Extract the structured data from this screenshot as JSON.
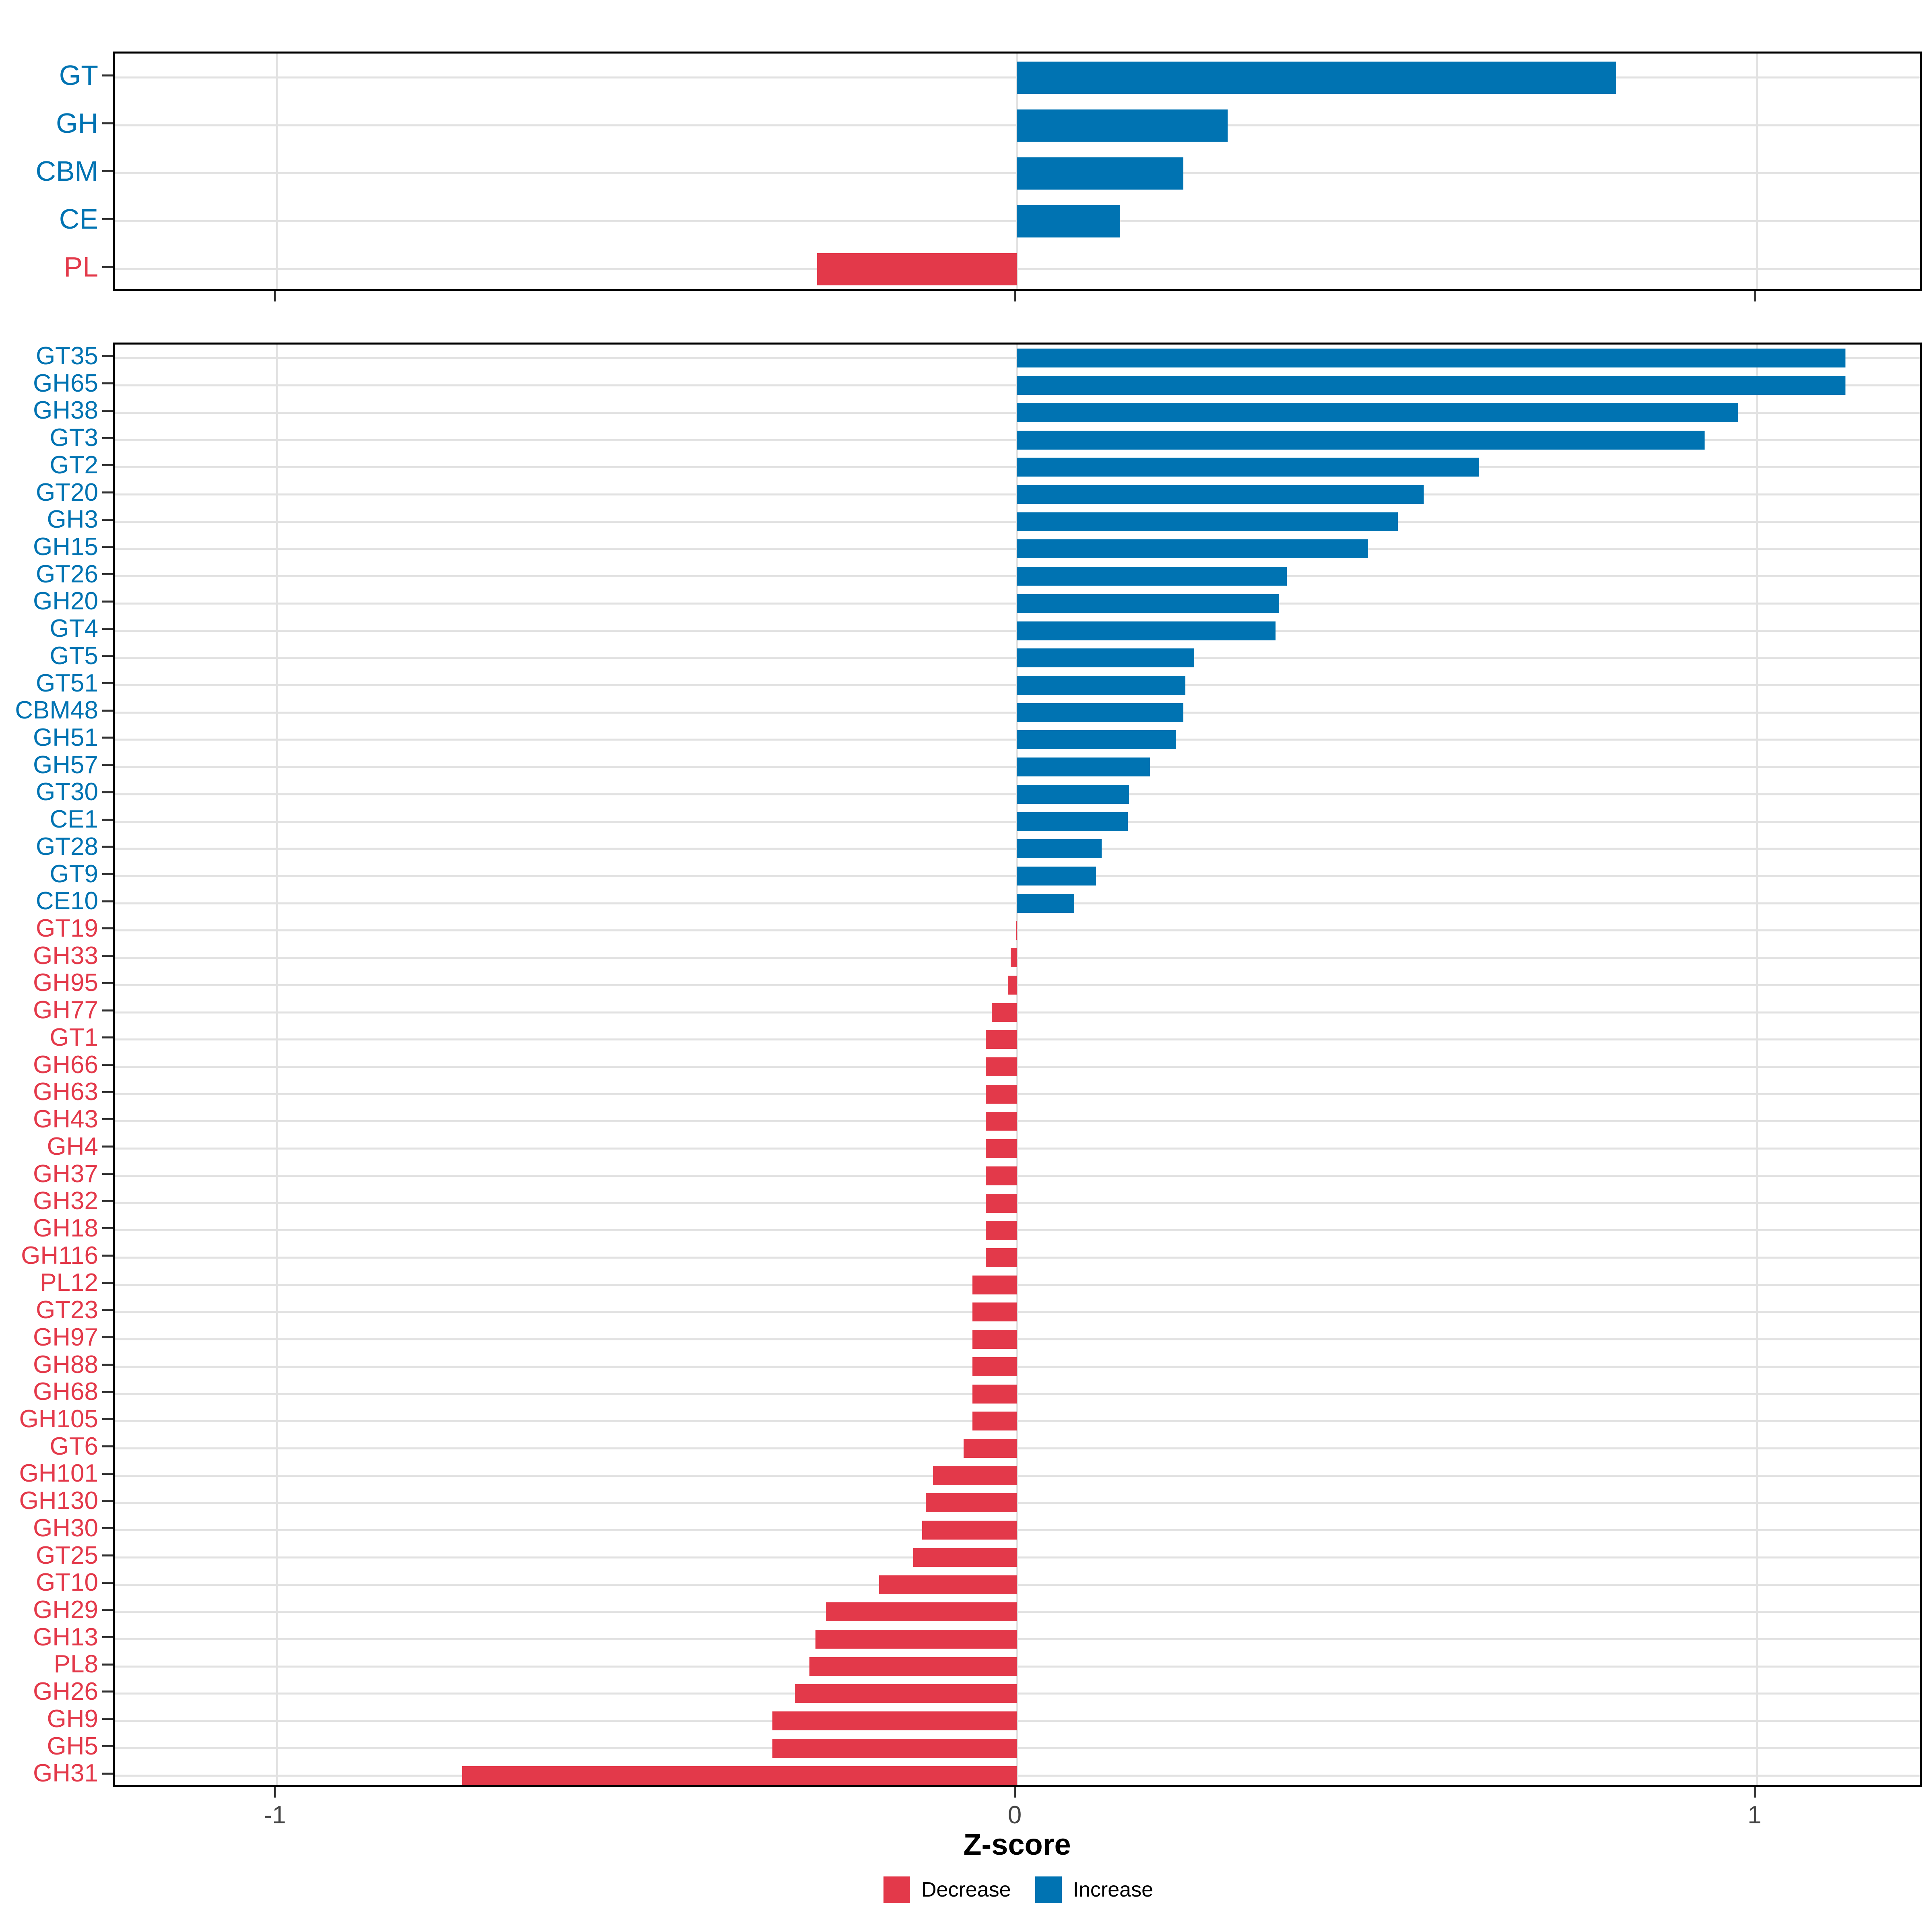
{
  "chart_data": [
    {
      "type": "bar",
      "orientation": "horizontal",
      "panel": "cazyme-class-summary",
      "categories": [
        "GT",
        "GH",
        "CBM",
        "CE",
        "PL"
      ],
      "values": [
        0.81,
        0.285,
        0.225,
        0.14,
        -0.27
      ],
      "directions": [
        "Increase",
        "Increase",
        "Increase",
        "Increase",
        "Decrease"
      ],
      "xlim": [
        -1.22,
        1.23
      ],
      "grid": "on",
      "gridlines_x": [
        -1,
        0,
        1
      ],
      "xticks": [
        -1,
        0,
        1
      ],
      "xticklabels": [
        "",
        "",
        ""
      ]
    },
    {
      "type": "bar",
      "orientation": "horizontal",
      "panel": "cazyme-family-detail",
      "categories": [
        "GT35",
        "GH65",
        "GH38",
        "GT3",
        "GT2",
        "GT20",
        "GH3",
        "GH15",
        "GT26",
        "GH20",
        "GT4",
        "GT5",
        "GT51",
        "CBM48",
        "GH51",
        "GH57",
        "GT30",
        "CE1",
        "GT28",
        "GT9",
        "CE10",
        "GT19",
        "GH33",
        "GH95",
        "GH77",
        "GT1",
        "GH66",
        "GH63",
        "GH43",
        "GH4",
        "GH37",
        "GH32",
        "GH18",
        "GH116",
        "PL12",
        "GT23",
        "GH97",
        "GH88",
        "GH68",
        "GH105",
        "GT6",
        "GH101",
        "GH130",
        "GH30",
        "GT25",
        "GT10",
        "GH29",
        "GH13",
        "PL8",
        "GH26",
        "GH9",
        "GH5",
        "GH31"
      ],
      "values": [
        1.12,
        1.12,
        0.975,
        0.93,
        0.625,
        0.55,
        0.515,
        0.475,
        0.365,
        0.355,
        0.35,
        0.24,
        0.228,
        0.225,
        0.215,
        0.18,
        0.152,
        0.15,
        0.115,
        0.107,
        0.078,
        -0.001,
        -0.008,
        -0.012,
        -0.034,
        -0.042,
        -0.042,
        -0.042,
        -0.042,
        -0.042,
        -0.042,
        -0.042,
        -0.042,
        -0.042,
        -0.06,
        -0.06,
        -0.06,
        -0.06,
        -0.06,
        -0.06,
        -0.072,
        -0.113,
        -0.123,
        -0.128,
        -0.14,
        -0.186,
        -0.258,
        -0.272,
        -0.28,
        -0.3,
        -0.33,
        -0.33,
        -0.75
      ],
      "xlim": [
        -1.22,
        1.23
      ],
      "grid": "on",
      "gridlines_x": [
        -1,
        0,
        1
      ],
      "xticks": [
        -1,
        0,
        1
      ],
      "xticklabels": [
        "-1",
        "0",
        "1"
      ],
      "xlabel": "Z-score"
    }
  ],
  "axis": {
    "xlabel": "Z-score",
    "xticklabels": [
      "-1",
      "0",
      "1"
    ]
  },
  "legend": {
    "items": [
      {
        "label": "Decrease",
        "color": "#E3394A"
      },
      {
        "label": "Increase",
        "color": "#0073B2"
      }
    ]
  },
  "colors": {
    "increase": "#0073B2",
    "decrease": "#E3394A",
    "grid": "#E2E2E2",
    "panel_border": "#000000",
    "tick": "#333333",
    "axis_text": "#444444",
    "title_text": "#000000"
  }
}
